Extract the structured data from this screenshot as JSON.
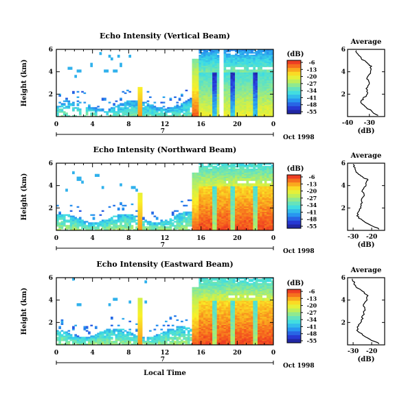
{
  "chart_data": [
    {
      "type": "heatmap",
      "title": "Echo Intensity (Vertical Beam)",
      "ylabel": "Height (km)",
      "x_ticks": [
        "0",
        "4",
        "8",
        "12",
        "16",
        "20",
        "0"
      ],
      "y_ticks": [
        "2",
        "4",
        "6"
      ],
      "xlim": [
        0,
        24
      ],
      "ylim": [
        0,
        6
      ],
      "day_label": "7",
      "date_label": "Oct 1998",
      "colorbar_unit": "(dB)",
      "colorbar_ticks": [
        "-6",
        "-13",
        "-20",
        "-27",
        "-34",
        "-41",
        "-48",
        "-55"
      ],
      "profile": {
        "title": "Average",
        "xlabel": "(dB)",
        "x_ticks": [
          "-40",
          "-30"
        ],
        "xlim": [
          -40,
          -23
        ],
        "y_ticks": [
          "2",
          "4",
          "6"
        ],
        "ylim": [
          0,
          6
        ],
        "points": [
          [
            -26,
            0.1
          ],
          [
            -29,
            0.5
          ],
          [
            -32,
            0.9
          ],
          [
            -34,
            1.3
          ],
          [
            -33,
            1.6
          ],
          [
            -31,
            2.0
          ],
          [
            -31.5,
            2.5
          ],
          [
            -30,
            3.0
          ],
          [
            -31,
            3.5
          ],
          [
            -29.5,
            4.0
          ],
          [
            -29,
            4.5
          ],
          [
            -31,
            4.8
          ],
          [
            -33.5,
            5.1
          ],
          [
            -35,
            5.5
          ],
          [
            -36,
            5.9
          ]
        ]
      }
    },
    {
      "type": "heatmap",
      "title": "Echo Intensity (Northward Beam)",
      "ylabel": "Height (km)",
      "x_ticks": [
        "0",
        "4",
        "8",
        "12",
        "16",
        "20",
        "0"
      ],
      "y_ticks": [
        "2",
        "4",
        "6"
      ],
      "xlim": [
        0,
        24
      ],
      "ylim": [
        0,
        6
      ],
      "day_label": "7",
      "date_label": "Oct 1998",
      "colorbar_unit": "(dB)",
      "colorbar_ticks": [
        "-6",
        "-13",
        "-20",
        "-27",
        "-34",
        "-41",
        "-48",
        "-55"
      ],
      "profile": {
        "title": "Average",
        "xlabel": "(dB)",
        "x_ticks": [
          "-30",
          "-20"
        ],
        "xlim": [
          -33,
          -13
        ],
        "y_ticks": [
          "2",
          "4",
          "6"
        ],
        "ylim": [
          0,
          6
        ],
        "points": [
          [
            -16,
            0.1
          ],
          [
            -21,
            0.5
          ],
          [
            -25,
            0.9
          ],
          [
            -28,
            1.3
          ],
          [
            -27,
            1.7
          ],
          [
            -26,
            2.1
          ],
          [
            -25.5,
            2.6
          ],
          [
            -24,
            3.1
          ],
          [
            -25,
            3.6
          ],
          [
            -23,
            4.1
          ],
          [
            -22,
            4.5
          ],
          [
            -25,
            4.8
          ],
          [
            -27.5,
            5.1
          ],
          [
            -29,
            5.5
          ],
          [
            -30,
            5.9
          ]
        ]
      }
    },
    {
      "type": "heatmap",
      "title": "Echo Intensity (Eastward Beam)",
      "ylabel": "Height (km)",
      "xlabel": "Local Time",
      "x_ticks": [
        "0",
        "4",
        "8",
        "12",
        "16",
        "20",
        "0"
      ],
      "y_ticks": [
        "2",
        "4",
        "6"
      ],
      "xlim": [
        0,
        24
      ],
      "ylim": [
        0,
        6
      ],
      "day_label": "7",
      "date_label": "Oct 1998",
      "colorbar_unit": "(dB)",
      "colorbar_ticks": [
        "-6",
        "-13",
        "-20",
        "-27",
        "-34",
        "-41",
        "-48",
        "-55"
      ],
      "profile": {
        "title": "Average",
        "xlabel": "(dB)",
        "x_ticks": [
          "-30",
          "-20"
        ],
        "xlim": [
          -33,
          -13
        ],
        "y_ticks": [
          "2",
          "4",
          "6"
        ],
        "ylim": [
          0,
          6
        ],
        "points": [
          [
            -16,
            0.1
          ],
          [
            -21,
            0.5
          ],
          [
            -25,
            0.9
          ],
          [
            -28,
            1.3
          ],
          [
            -27,
            1.7
          ],
          [
            -25.5,
            2.1
          ],
          [
            -25,
            2.6
          ],
          [
            -23.5,
            3.1
          ],
          [
            -24.5,
            3.6
          ],
          [
            -22.5,
            4.0
          ],
          [
            -22,
            4.4
          ],
          [
            -25,
            4.8
          ],
          [
            -28,
            5.1
          ],
          [
            -29.5,
            5.5
          ],
          [
            -30.5,
            5.9
          ]
        ]
      }
    }
  ]
}
